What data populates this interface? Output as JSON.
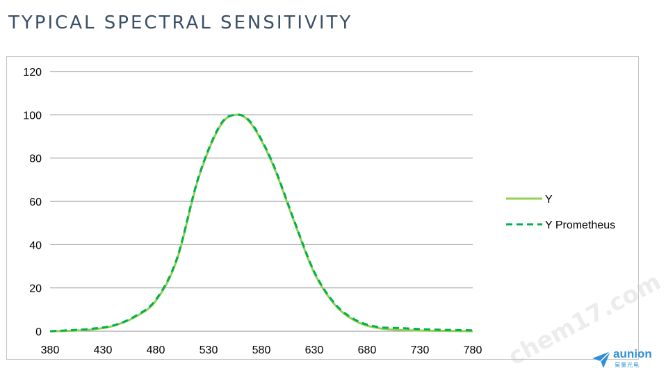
{
  "slide": {
    "title": "TYPICAL SPECTRAL SENSITIVITY"
  },
  "watermark": {
    "text": "chem17.com"
  },
  "logo": {
    "name": "aunion",
    "subtitle": "昊量光电",
    "color": "#2f8fd8"
  },
  "chart_data": {
    "type": "line",
    "title": "",
    "xlabel": "",
    "ylabel": "",
    "xlim": [
      380,
      780
    ],
    "ylim": [
      0,
      120
    ],
    "x_ticks": [
      380,
      430,
      480,
      530,
      580,
      630,
      680,
      730,
      780
    ],
    "y_ticks": [
      0,
      20,
      40,
      60,
      80,
      100,
      120
    ],
    "grid": "horizontal",
    "legend_position": "right",
    "series": [
      {
        "name": "Y",
        "color": "#92d050",
        "style": "solid",
        "x": [
          380,
          400,
          420,
          440,
          460,
          480,
          500,
          520,
          540,
          555,
          570,
          590,
          610,
          630,
          650,
          670,
          690,
          710,
          730,
          750,
          780
        ],
        "y": [
          0,
          0.2,
          0.8,
          2.5,
          6.5,
          14,
          33,
          70,
          94,
          100,
          96,
          78,
          52,
          27,
          12,
          4.5,
          1.5,
          0.6,
          0.3,
          0.15,
          0
        ]
      },
      {
        "name": "Y Prometheus",
        "color": "#00b050",
        "style": "dashed",
        "x": [
          380,
          400,
          420,
          440,
          460,
          480,
          500,
          520,
          540,
          555,
          570,
          590,
          610,
          630,
          650,
          670,
          690,
          710,
          730,
          750,
          780
        ],
        "y": [
          0,
          0.5,
          1.2,
          2.7,
          6.8,
          14.5,
          33.5,
          70.5,
          94.5,
          100,
          96.5,
          78.5,
          52.5,
          27.5,
          12.5,
          5,
          2,
          1.5,
          1,
          0.7,
          0.4
        ]
      }
    ]
  }
}
